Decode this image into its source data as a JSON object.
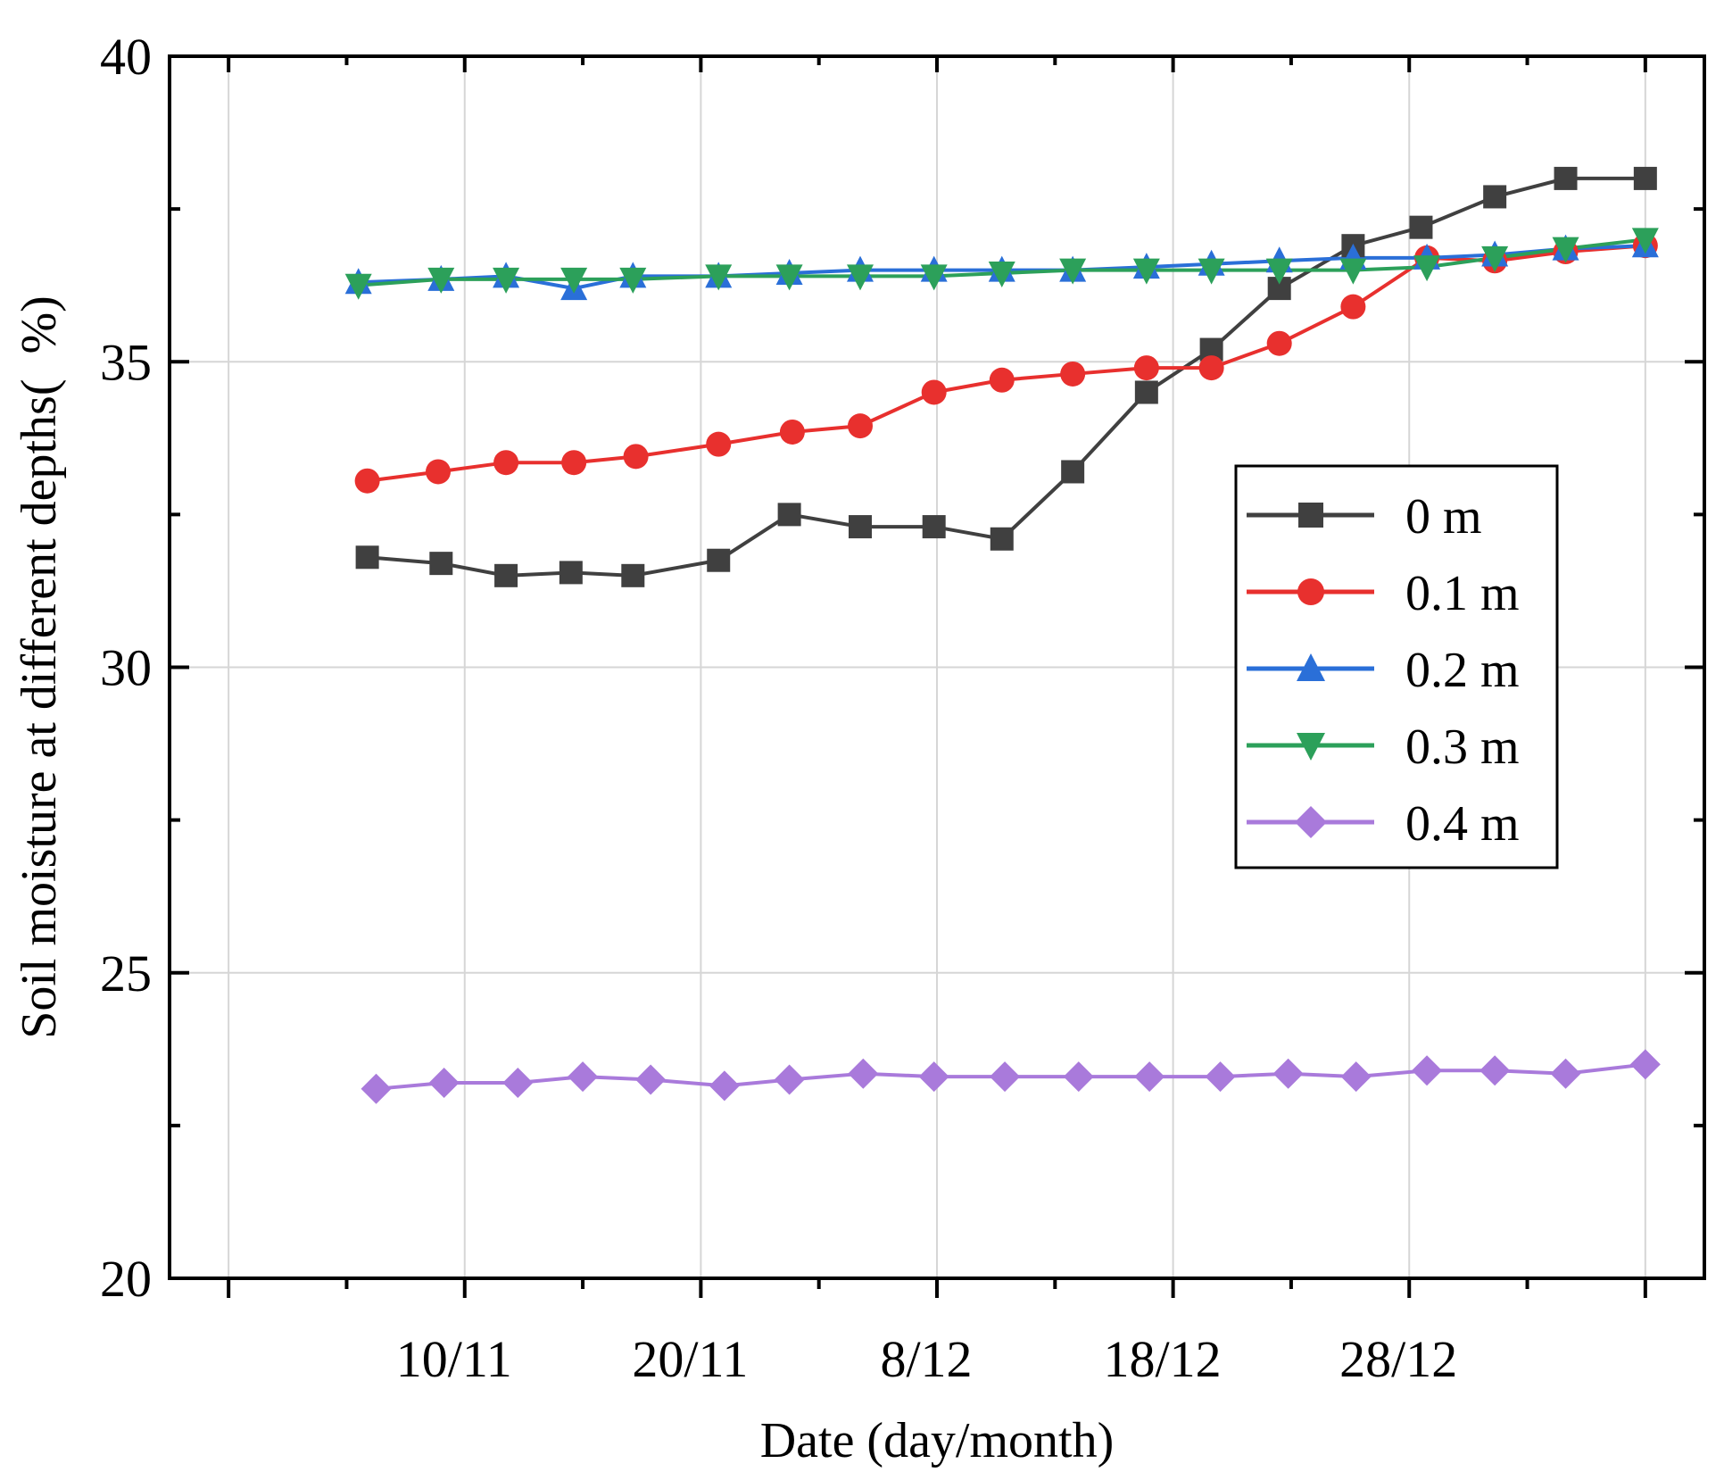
{
  "chart_data": {
    "type": "line",
    "title": "",
    "xlabel": "Date (day/month)",
    "ylabel": "Soil moisture at different depths(  %)",
    "ylim": [
      20,
      40
    ],
    "yticks": [
      20,
      25,
      30,
      35,
      40
    ],
    "xlim": [
      0,
      26
    ],
    "x_major_ticks": [
      1,
      5,
      9,
      13,
      17,
      21,
      25
    ],
    "x_minor_ticks": [
      3,
      7,
      11,
      15,
      19,
      23
    ],
    "x_tick_labels": [
      {
        "x": 5,
        "label": "10/11"
      },
      {
        "x": 9,
        "label": "20/11"
      },
      {
        "x": 13,
        "label": "8/12"
      },
      {
        "x": 17,
        "label": "18/12"
      },
      {
        "x": 21,
        "label": "28/12"
      }
    ],
    "x_grid_positions": [
      1,
      5,
      9,
      13,
      17,
      21,
      25
    ],
    "y_grid_values": [
      25,
      30,
      35
    ],
    "grid": true,
    "legend_position": "right-middle",
    "series": [
      {
        "name": "0 m",
        "color": "#404040",
        "marker": "square",
        "x": [
          3.35,
          4.6,
          5.7,
          6.8,
          7.85,
          9.3,
          10.5,
          11.7,
          12.95,
          14.1,
          15.3,
          16.55,
          17.65,
          18.8,
          20.05,
          21.2,
          22.45,
          23.65,
          25.0
        ],
        "y": [
          31.8,
          31.7,
          31.5,
          31.55,
          31.5,
          31.75,
          32.5,
          32.3,
          32.3,
          32.1,
          33.2,
          34.5,
          35.2,
          36.2,
          36.9,
          37.2,
          37.7,
          38.0,
          38.0
        ]
      },
      {
        "name": "0.1 m",
        "color": "#e8302e",
        "marker": "circle",
        "x": [
          3.35,
          4.55,
          5.7,
          6.85,
          7.9,
          9.3,
          10.55,
          11.7,
          12.95,
          14.1,
          15.3,
          16.55,
          17.65,
          18.8,
          20.05,
          21.3,
          22.45,
          23.65,
          25.0
        ],
        "y": [
          33.05,
          33.2,
          33.35,
          33.35,
          33.45,
          33.65,
          33.85,
          33.95,
          34.5,
          34.7,
          34.8,
          34.9,
          34.9,
          35.3,
          35.9,
          36.7,
          36.65,
          36.8,
          36.9
        ]
      },
      {
        "name": "0.2 m",
        "color": "#2a6fd8",
        "marker": "triangle-up",
        "x": [
          3.2,
          4.6,
          5.7,
          6.85,
          7.85,
          9.3,
          10.5,
          11.7,
          12.95,
          14.1,
          15.3,
          16.55,
          17.65,
          18.8,
          20.05,
          21.3,
          22.45,
          23.65,
          25.0
        ],
        "y": [
          36.3,
          36.35,
          36.4,
          36.2,
          36.4,
          36.4,
          36.45,
          36.5,
          36.5,
          36.5,
          36.5,
          36.55,
          36.6,
          36.65,
          36.7,
          36.7,
          36.75,
          36.85,
          36.9
        ]
      },
      {
        "name": "0.3 m",
        "color": "#2ca05a",
        "marker": "triangle-down",
        "x": [
          3.2,
          4.6,
          5.7,
          6.85,
          7.85,
          9.3,
          10.5,
          11.7,
          12.95,
          14.1,
          15.3,
          16.55,
          17.65,
          18.8,
          20.05,
          21.3,
          22.45,
          23.65,
          25.0
        ],
        "y": [
          36.25,
          36.35,
          36.35,
          36.35,
          36.35,
          36.4,
          36.4,
          36.4,
          36.4,
          36.45,
          36.5,
          36.5,
          36.5,
          36.5,
          36.5,
          36.55,
          36.7,
          36.85,
          37.0
        ]
      },
      {
        "name": "0.4 m",
        "color": "#a97adb",
        "marker": "diamond",
        "x": [
          3.5,
          4.65,
          5.9,
          7.0,
          8.15,
          9.4,
          10.5,
          11.75,
          12.95,
          14.15,
          15.4,
          16.6,
          17.8,
          18.95,
          20.1,
          21.3,
          22.45,
          23.65,
          25.0
        ],
        "y": [
          23.1,
          23.2,
          23.2,
          23.3,
          23.25,
          23.15,
          23.25,
          23.35,
          23.3,
          23.3,
          23.3,
          23.3,
          23.3,
          23.35,
          23.3,
          23.4,
          23.4,
          23.35,
          23.5
        ]
      }
    ]
  }
}
